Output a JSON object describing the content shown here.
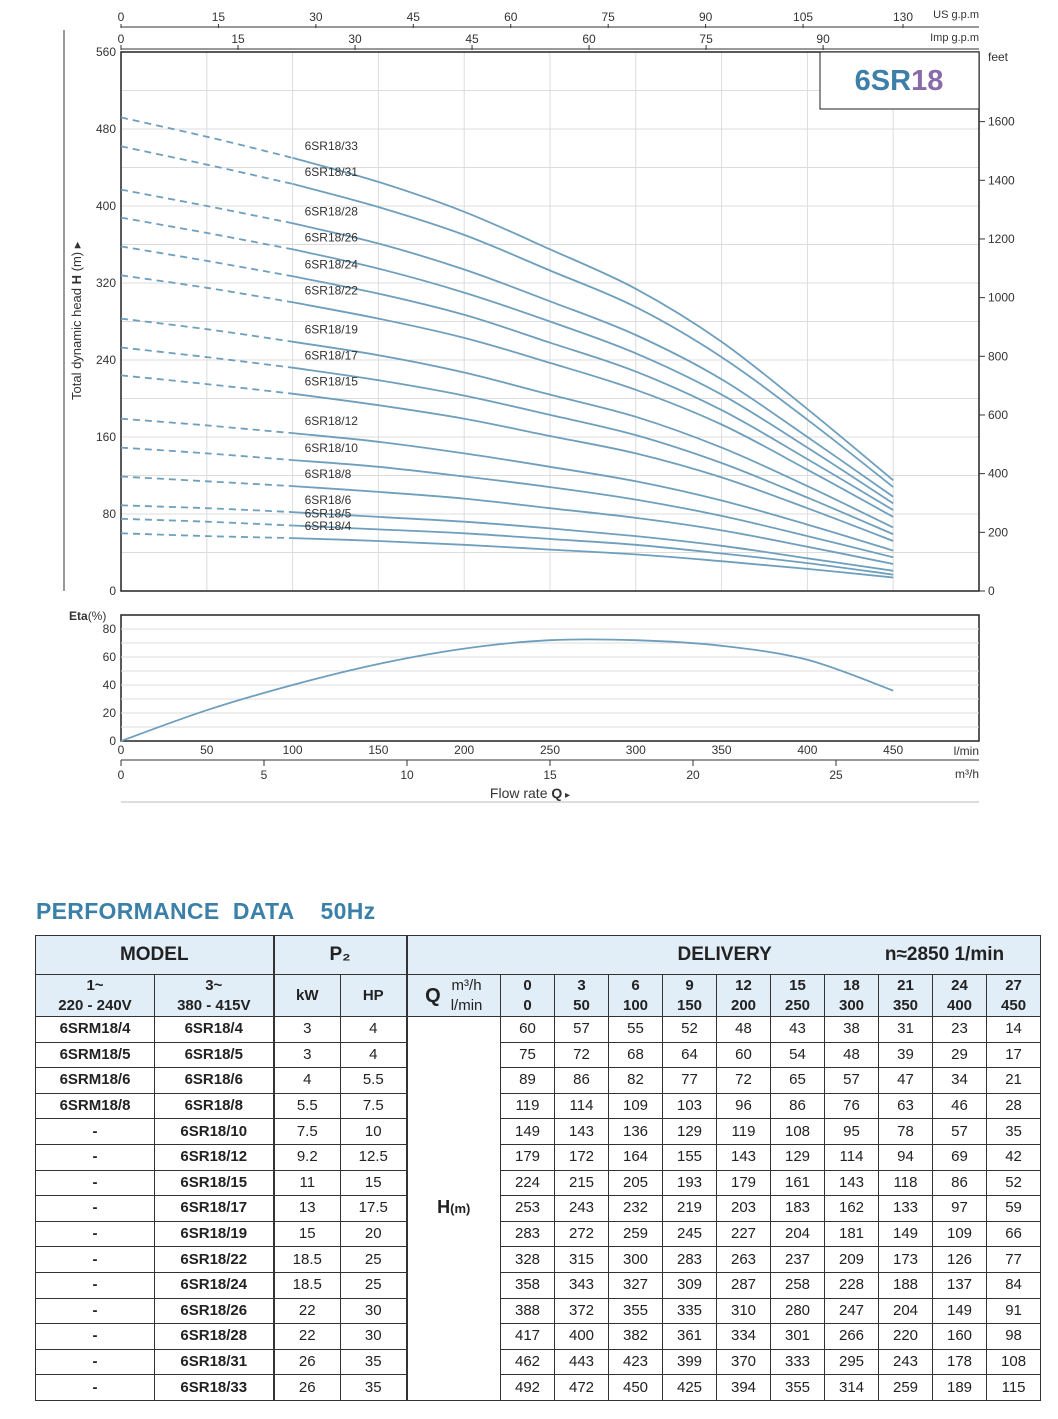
{
  "chart_data": [
    {
      "type": "line",
      "title": "6SR18",
      "ylabel": "Total dynamic head H (m)",
      "xlabel": "Flow rate Q",
      "xlim": [
        0,
        500
      ],
      "ylim": [
        0,
        560
      ],
      "yticks": [
        0,
        80,
        160,
        240,
        320,
        400,
        480,
        560
      ],
      "y_right_label": "feet",
      "y_right_ticks": [
        "0",
        "200",
        "400",
        "600",
        "800",
        "1000",
        "1200",
        "1400",
        "1600"
      ],
      "x_top_axes": [
        {
          "label": "US g.p.m",
          "ticks": [
            "0",
            "15",
            "30",
            "45",
            "60",
            "75",
            "90",
            "105",
            "130"
          ]
        },
        {
          "label": "Imp g.p.m",
          "ticks": [
            "0",
            "15",
            "30",
            "45",
            "60",
            "75",
            "90"
          ]
        }
      ],
      "x": [
        0,
        50,
        100,
        150,
        200,
        250,
        300,
        350,
        400,
        450
      ],
      "series": [
        {
          "name": "6SR18/33",
          "values": [
            492,
            472,
            450,
            425,
            394,
            355,
            314,
            259,
            189,
            115
          ]
        },
        {
          "name": "6SR18/31",
          "values": [
            462,
            443,
            423,
            399,
            370,
            333,
            295,
            243,
            178,
            108
          ]
        },
        {
          "name": "6SR18/28",
          "values": [
            417,
            400,
            382,
            361,
            334,
            301,
            266,
            220,
            160,
            98
          ]
        },
        {
          "name": "6SR18/26",
          "values": [
            388,
            372,
            355,
            335,
            310,
            280,
            247,
            204,
            149,
            91
          ]
        },
        {
          "name": "6SR18/24",
          "values": [
            358,
            343,
            327,
            309,
            287,
            258,
            228,
            188,
            137,
            84
          ]
        },
        {
          "name": "6SR18/22",
          "values": [
            328,
            315,
            300,
            283,
            263,
            237,
            209,
            173,
            126,
            77
          ]
        },
        {
          "name": "6SR18/19",
          "values": [
            283,
            272,
            259,
            245,
            227,
            204,
            181,
            149,
            109,
            66
          ]
        },
        {
          "name": "6SR18/17",
          "values": [
            253,
            243,
            232,
            219,
            203,
            183,
            162,
            133,
            97,
            59
          ]
        },
        {
          "name": "6SR18/15",
          "values": [
            224,
            215,
            205,
            193,
            179,
            161,
            143,
            118,
            86,
            52
          ]
        },
        {
          "name": "6SR18/12",
          "values": [
            179,
            172,
            164,
            155,
            143,
            129,
            114,
            94,
            69,
            42
          ]
        },
        {
          "name": "6SR18/10",
          "values": [
            149,
            143,
            136,
            129,
            119,
            108,
            95,
            78,
            57,
            35
          ]
        },
        {
          "name": "6SR18/8",
          "values": [
            119,
            114,
            109,
            103,
            96,
            86,
            76,
            63,
            46,
            28
          ]
        },
        {
          "name": "6SR18/6",
          "values": [
            89,
            86,
            82,
            77,
            72,
            65,
            57,
            47,
            34,
            21
          ]
        },
        {
          "name": "6SR18/5",
          "values": [
            75,
            72,
            68,
            64,
            60,
            54,
            48,
            39,
            29,
            17
          ]
        },
        {
          "name": "6SR18/4",
          "values": [
            60,
            57,
            55,
            52,
            48,
            43,
            38,
            31,
            23,
            14
          ]
        }
      ],
      "line_color": "#6e9fbd",
      "grid": true
    },
    {
      "type": "line",
      "ylabel": "Eta(%)",
      "xlim": [
        0,
        500
      ],
      "ylim": [
        0,
        90
      ],
      "yticks": [
        0,
        20,
        40,
        60,
        80
      ],
      "x_bottom_axes": [
        {
          "label": "l/min",
          "ticks": [
            "0",
            "50",
            "100",
            "150",
            "200",
            "250",
            "300",
            "350",
            "400",
            "450"
          ]
        },
        {
          "label": "m³/h",
          "ticks": [
            "0",
            "5",
            "10",
            "15",
            "20",
            "25"
          ]
        }
      ],
      "x": [
        0,
        50,
        100,
        150,
        200,
        250,
        300,
        350,
        400,
        450
      ],
      "series": [
        {
          "values": [
            0,
            22,
            40,
            55,
            66,
            72,
            72,
            68,
            58,
            36
          ]
        }
      ],
      "line_color": "#6e9fbd",
      "grid": true
    }
  ],
  "axes": {
    "eta_label_bold": "Eta",
    "eta_label_unit": "(%)",
    "ylabel_text_a": "Total dynamic head ",
    "ylabel_text_b": "H",
    "ylabel_text_c": " (m)",
    "flow_text": "Flow  rate  ",
    "flow_symbol": "Q"
  },
  "section": {
    "title": "PERFORMANCE  DATA",
    "hz": "50Hz"
  },
  "table": {
    "h_model": "MODEL",
    "h_p2": "P₂",
    "h_delivery": "DELIVERY",
    "h_speed": "n≈2850 1/min",
    "h_1phase": "1~",
    "h_1phase_v": "220 - 240V",
    "h_3phase": "3~",
    "h_3phase_v": "380 - 415V",
    "h_kw": "kW",
    "h_hp": "HP",
    "h_q": "Q",
    "h_m3h": "m³/h",
    "h_lmin": "l/min",
    "q_m3h": [
      "0",
      "3",
      "6",
      "9",
      "12",
      "15",
      "18",
      "21",
      "24",
      "27"
    ],
    "q_lmin": [
      "0",
      "50",
      "100",
      "150",
      "200",
      "250",
      "300",
      "350",
      "400",
      "450"
    ],
    "h_label": "H",
    "h_unit": "(m)",
    "rows": [
      {
        "m1": "6SRM18/4",
        "m3": "6SR18/4",
        "kw": "3",
        "hp": "4",
        "h": [
          "60",
          "57",
          "55",
          "52",
          "48",
          "43",
          "38",
          "31",
          "23",
          "14"
        ]
      },
      {
        "m1": "6SRM18/5",
        "m3": "6SR18/5",
        "kw": "3",
        "hp": "4",
        "h": [
          "75",
          "72",
          "68",
          "64",
          "60",
          "54",
          "48",
          "39",
          "29",
          "17"
        ]
      },
      {
        "m1": "6SRM18/6",
        "m3": "6SR18/6",
        "kw": "4",
        "hp": "5.5",
        "h": [
          "89",
          "86",
          "82",
          "77",
          "72",
          "65",
          "57",
          "47",
          "34",
          "21"
        ]
      },
      {
        "m1": "6SRM18/8",
        "m3": "6SR18/8",
        "kw": "5.5",
        "hp": "7.5",
        "h": [
          "119",
          "114",
          "109",
          "103",
          "96",
          "86",
          "76",
          "63",
          "46",
          "28"
        ]
      },
      {
        "m1": "-",
        "m3": "6SR18/10",
        "kw": "7.5",
        "hp": "10",
        "h": [
          "149",
          "143",
          "136",
          "129",
          "119",
          "108",
          "95",
          "78",
          "57",
          "35"
        ]
      },
      {
        "m1": "-",
        "m3": "6SR18/12",
        "kw": "9.2",
        "hp": "12.5",
        "h": [
          "179",
          "172",
          "164",
          "155",
          "143",
          "129",
          "114",
          "94",
          "69",
          "42"
        ]
      },
      {
        "m1": "-",
        "m3": "6SR18/15",
        "kw": "11",
        "hp": "15",
        "h": [
          "224",
          "215",
          "205",
          "193",
          "179",
          "161",
          "143",
          "118",
          "86",
          "52"
        ]
      },
      {
        "m1": "-",
        "m3": "6SR18/17",
        "kw": "13",
        "hp": "17.5",
        "h": [
          "253",
          "243",
          "232",
          "219",
          "203",
          "183",
          "162",
          "133",
          "97",
          "59"
        ]
      },
      {
        "m1": "-",
        "m3": "6SR18/19",
        "kw": "15",
        "hp": "20",
        "h": [
          "283",
          "272",
          "259",
          "245",
          "227",
          "204",
          "181",
          "149",
          "109",
          "66"
        ]
      },
      {
        "m1": "-",
        "m3": "6SR18/22",
        "kw": "18.5",
        "hp": "25",
        "h": [
          "328",
          "315",
          "300",
          "283",
          "263",
          "237",
          "209",
          "173",
          "126",
          "77"
        ]
      },
      {
        "m1": "-",
        "m3": "6SR18/24",
        "kw": "18.5",
        "hp": "25",
        "h": [
          "358",
          "343",
          "327",
          "309",
          "287",
          "258",
          "228",
          "188",
          "137",
          "84"
        ]
      },
      {
        "m1": "-",
        "m3": "6SR18/26",
        "kw": "22",
        "hp": "30",
        "h": [
          "388",
          "372",
          "355",
          "335",
          "310",
          "280",
          "247",
          "204",
          "149",
          "91"
        ]
      },
      {
        "m1": "-",
        "m3": "6SR18/28",
        "kw": "22",
        "hp": "30",
        "h": [
          "417",
          "400",
          "382",
          "361",
          "334",
          "301",
          "266",
          "220",
          "160",
          "98"
        ]
      },
      {
        "m1": "-",
        "m3": "6SR18/31",
        "kw": "26",
        "hp": "35",
        "h": [
          "462",
          "443",
          "423",
          "399",
          "370",
          "333",
          "295",
          "243",
          "178",
          "108"
        ]
      },
      {
        "m1": "-",
        "m3": "6SR18/33",
        "kw": "26",
        "hp": "35",
        "h": [
          "492",
          "472",
          "450",
          "425",
          "394",
          "355",
          "314",
          "259",
          "189",
          "115"
        ]
      }
    ]
  }
}
